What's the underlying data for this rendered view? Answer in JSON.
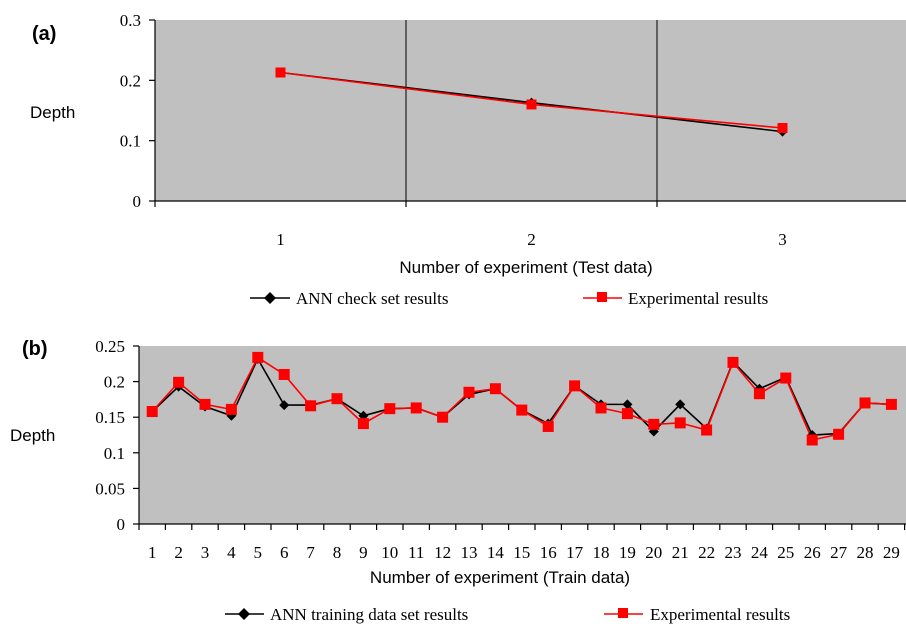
{
  "chart_data": [
    {
      "type": "line",
      "panel_label": "(a)",
      "title": "",
      "ylabel": "Depth",
      "xlabel": "Number of experiment (Test data)",
      "categories": [
        "1",
        "2",
        "3"
      ],
      "ylim": [
        0,
        0.3
      ],
      "yticks": [
        "0",
        "0.1",
        "0.2",
        "0.3"
      ],
      "background": "#c0c0c0",
      "grid": "vertical",
      "legend_position": "bottom",
      "series": [
        {
          "name": "ANN check set results",
          "values": [
            0.213,
            0.163,
            0.115
          ],
          "color": "#000000",
          "marker": "diamond"
        },
        {
          "name": "Experimental results",
          "values": [
            0.213,
            0.16,
            0.121
          ],
          "color": "#ff0000",
          "marker": "square"
        }
      ]
    },
    {
      "type": "line",
      "panel_label": "(b)",
      "title": "",
      "ylabel": "Depth",
      "xlabel": "Number of experiment (Train data)",
      "categories": [
        "1",
        "2",
        "3",
        "4",
        "5",
        "6",
        "7",
        "8",
        "9",
        "10",
        "11",
        "12",
        "13",
        "14",
        "15",
        "16",
        "17",
        "18",
        "19",
        "20",
        "21",
        "22",
        "23",
        "24",
        "25",
        "26",
        "27",
        "28",
        "29"
      ],
      "ylim": [
        0,
        0.25
      ],
      "yticks": [
        "0",
        "0.05",
        "0.1",
        "0.15",
        "0.2",
        "0.25"
      ],
      "background": "#c0c0c0",
      "grid": "none",
      "legend_position": "bottom",
      "series": [
        {
          "name": "ANN training data set results",
          "color": "#000000",
          "marker": "diamond",
          "values": [
            0.158,
            0.193,
            0.165,
            0.152,
            0.232,
            0.167,
            0.167,
            0.176,
            0.152,
            0.162,
            0.163,
            0.15,
            0.182,
            0.19,
            0.16,
            0.141,
            0.194,
            0.168,
            0.168,
            0.13,
            0.168,
            0.134,
            0.228,
            0.19,
            0.206,
            0.125,
            0.127,
            0.17,
            0.168
          ]
        },
        {
          "name": "Experimental results",
          "color": "#ff0000",
          "marker": "square",
          "values": [
            0.158,
            0.199,
            0.168,
            0.161,
            0.234,
            0.21,
            0.166,
            0.176,
            0.141,
            0.162,
            0.163,
            0.15,
            0.185,
            0.19,
            0.16,
            0.137,
            0.194,
            0.163,
            0.155,
            0.14,
            0.142,
            0.132,
            0.227,
            0.183,
            0.205,
            0.118,
            0.126,
            0.17,
            0.168
          ]
        }
      ]
    }
  ]
}
